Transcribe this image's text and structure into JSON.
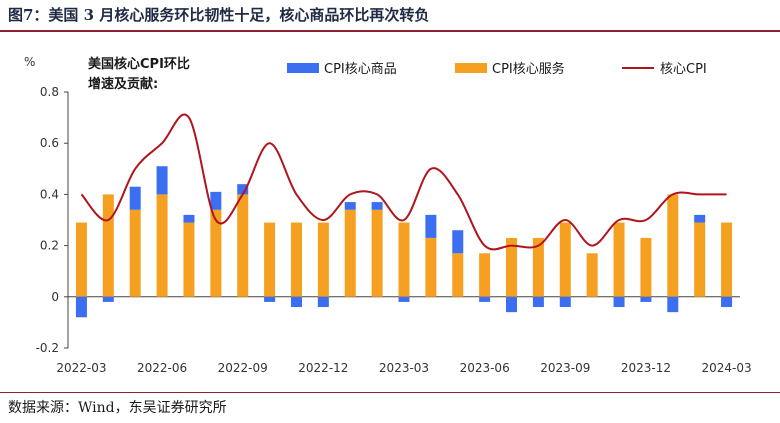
{
  "figure": {
    "title": "图7：美国 3 月核心服务环比韧性十足，核心商品环比再次转负",
    "source": "数据来源：Wind，东吴证券研究所"
  },
  "chart_data": {
    "type": "bar+line",
    "ylabel": "%",
    "note_line1": "美国核心CPI环比",
    "note_line2": "增速及贡献:",
    "ylim": [
      -0.2,
      0.8
    ],
    "yticks": [
      "-0.2",
      "0",
      "0.2",
      "0.4",
      "0.6",
      "0.8"
    ],
    "xtick_labels": [
      "2022-03",
      "2022-06",
      "2022-09",
      "2022-12",
      "2023-03",
      "2023-06",
      "2023-09",
      "2023-12",
      "2024-03"
    ],
    "categories": [
      "2022-03",
      "2022-04",
      "2022-05",
      "2022-06",
      "2022-07",
      "2022-08",
      "2022-09",
      "2022-10",
      "2022-11",
      "2022-12",
      "2023-01",
      "2023-02",
      "2023-03",
      "2023-04",
      "2023-05",
      "2023-06",
      "2023-07",
      "2023-08",
      "2023-09",
      "2023-10",
      "2023-11",
      "2023-12",
      "2024-01",
      "2024-02",
      "2024-03"
    ],
    "series": [
      {
        "name": "CPI核心商品",
        "color": "#3b6ef0",
        "values": [
          -0.08,
          -0.02,
          0.09,
          0.11,
          0.03,
          0.07,
          0.04,
          -0.02,
          -0.04,
          -0.04,
          0.03,
          0.03,
          -0.02,
          0.09,
          0.09,
          -0.02,
          -0.06,
          -0.04,
          -0.04,
          0.0,
          -0.04,
          -0.02,
          -0.06,
          0.03,
          -0.04
        ]
      },
      {
        "name": "CPI核心服务",
        "color": "#f5a020",
        "values": [
          0.29,
          0.4,
          0.34,
          0.4,
          0.29,
          0.34,
          0.4,
          0.29,
          0.29,
          0.29,
          0.34,
          0.34,
          0.29,
          0.23,
          0.17,
          0.17,
          0.23,
          0.23,
          0.29,
          0.17,
          0.29,
          0.23,
          0.4,
          0.29,
          0.29
        ]
      },
      {
        "name": "核心CPI",
        "color": "#b0141c",
        "values": [
          0.4,
          0.3,
          0.5,
          0.6,
          0.7,
          0.3,
          0.4,
          0.6,
          0.4,
          0.3,
          0.4,
          0.4,
          0.3,
          0.5,
          0.4,
          0.2,
          0.2,
          0.2,
          0.3,
          0.2,
          0.3,
          0.3,
          0.4,
          0.4,
          0.4
        ]
      }
    ],
    "legend_position": "top"
  }
}
